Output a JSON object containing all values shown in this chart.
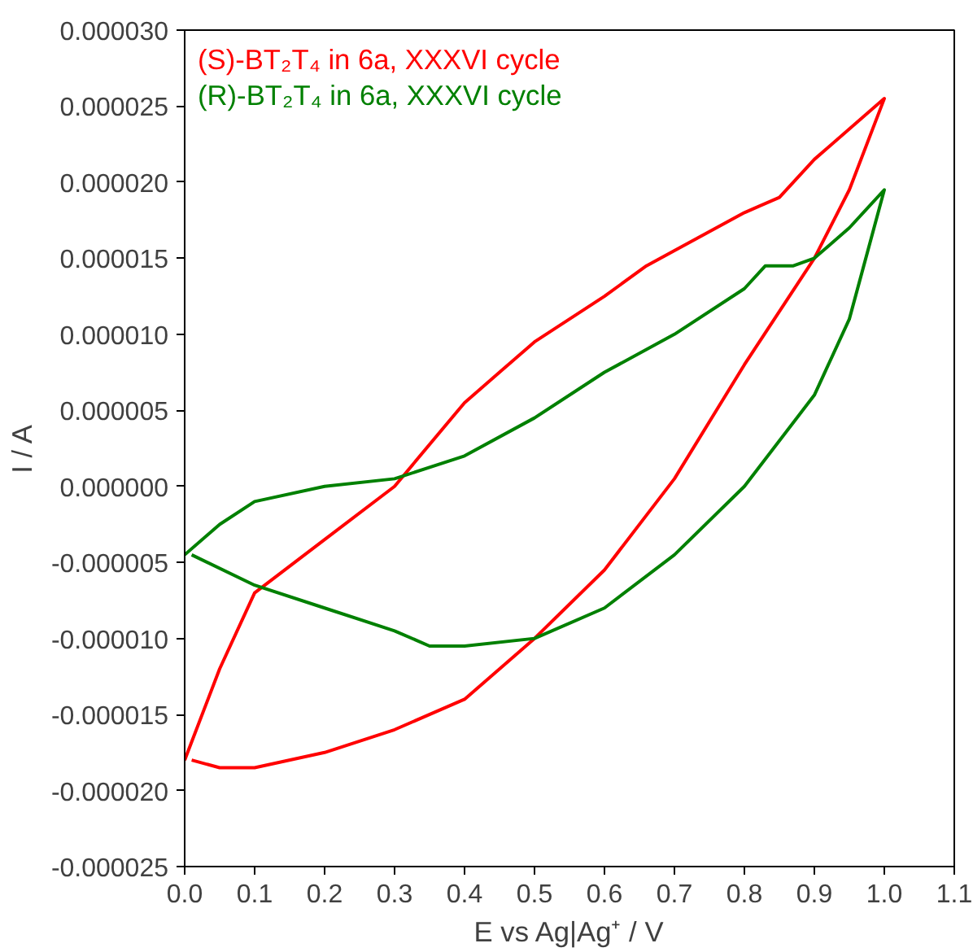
{
  "chart_data": {
    "type": "line",
    "xlabel": "E vs Ag|Ag⁺ / V",
    "ylabel": "I / A",
    "xlim": [
      0.0,
      1.1
    ],
    "xticks": [
      {
        "value": 0,
        "label": "0.0"
      },
      {
        "value": 0.1,
        "label": "0.1"
      },
      {
        "value": 0.2,
        "label": "0.2"
      },
      {
        "value": 0.3,
        "label": "0.3"
      },
      {
        "value": 0.4,
        "label": "0.4"
      },
      {
        "value": 0.5,
        "label": "0.5"
      },
      {
        "value": 0.6,
        "label": "0.6"
      },
      {
        "value": 0.7,
        "label": "0.7"
      },
      {
        "value": 0.8,
        "label": "0.8"
      },
      {
        "value": 0.9,
        "label": "0.9"
      },
      {
        "value": 1.0,
        "label": "1.0"
      },
      {
        "value": 1.1,
        "label": "1.1"
      }
    ],
    "ylim": [
      -2.5e-05,
      3e-05
    ],
    "yticks": [
      {
        "value": -2.5e-05,
        "label": "-0.000025"
      },
      {
        "value": -2e-05,
        "label": "-0.000020"
      },
      {
        "value": -1.5e-05,
        "label": "-0.000015"
      },
      {
        "value": -1e-05,
        "label": "-0.000010"
      },
      {
        "value": -5e-06,
        "label": "-0.000005"
      },
      {
        "value": 0,
        "label": "0.000000"
      },
      {
        "value": 5e-06,
        "label": "0.000005"
      },
      {
        "value": 1e-05,
        "label": "0.000010"
      },
      {
        "value": 1.5e-05,
        "label": "0.000015"
      },
      {
        "value": 2e-05,
        "label": "0.000020"
      },
      {
        "value": 2.5e-05,
        "label": "0.000025"
      },
      {
        "value": 3e-05,
        "label": "0.000030"
      }
    ],
    "grid": false,
    "marker": "none",
    "line_style": "solid",
    "series": [
      {
        "name": "(S)-BT₂T₄ in 6a, XXXVI cycle",
        "color": "#ff0000",
        "x": [
          0,
          0.05,
          0.1,
          0.2,
          0.3,
          0.4,
          0.45,
          0.5,
          0.6,
          0.66,
          0.7,
          0.8,
          0.85,
          0.9,
          1.0,
          0.95,
          0.9,
          0.8,
          0.7,
          0.6,
          0.5,
          0.4,
          0.3,
          0.2,
          0.1,
          0.05,
          0.01
        ],
        "values": [
          -1.8e-05,
          -1.2e-05,
          -7e-06,
          -3.5e-06,
          0,
          5.5e-06,
          7.5e-06,
          9.5e-06,
          1.25e-05,
          1.45e-05,
          1.55e-05,
          1.8e-05,
          1.9e-05,
          2.15e-05,
          2.55e-05,
          1.95e-05,
          1.5e-05,
          8e-06,
          5e-07,
          -5.5e-06,
          -1e-05,
          -1.4e-05,
          -1.6e-05,
          -1.75e-05,
          -1.85e-05,
          -1.85e-05,
          -1.8e-05
        ]
      },
      {
        "name": "(R)-BT₂T₄ in 6a, XXXVI cycle",
        "color": "#008000",
        "x": [
          0,
          0.05,
          0.1,
          0.2,
          0.3,
          0.4,
          0.5,
          0.6,
          0.7,
          0.8,
          0.83,
          0.87,
          0.9,
          0.95,
          1.0,
          0.95,
          0.9,
          0.8,
          0.7,
          0.6,
          0.5,
          0.4,
          0.35,
          0.3,
          0.2,
          0.1,
          0.01
        ],
        "values": [
          -4.5e-06,
          -2.5e-06,
          -1e-06,
          0,
          5e-07,
          2e-06,
          4.5e-06,
          7.5e-06,
          1e-05,
          1.3e-05,
          1.45e-05,
          1.45e-05,
          1.5e-05,
          1.7e-05,
          1.95e-05,
          1.1e-05,
          6e-06,
          0,
          -4.5e-06,
          -8e-06,
          -1e-05,
          -1.05e-05,
          -1.05e-05,
          -9.5e-06,
          -8e-06,
          -6.5e-06,
          -4.5e-06
        ]
      }
    ]
  }
}
